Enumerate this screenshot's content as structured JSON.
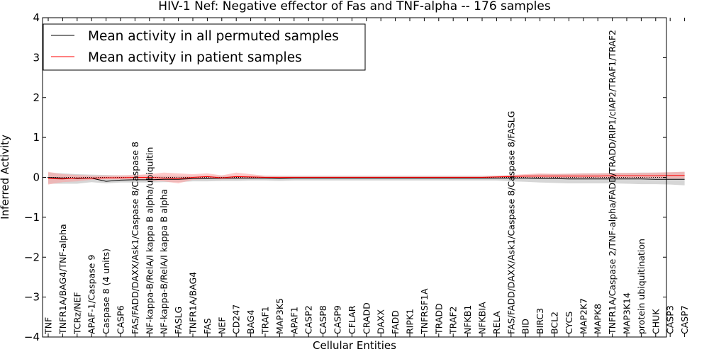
{
  "chart_data": {
    "type": "line",
    "title": "HIV-1 Nef: Negative effector of Fas and TNF-alpha -- 176 samples",
    "xlabel": "Cellular Entities",
    "ylabel": "Inferred Activity",
    "ylim": [
      -4,
      4
    ],
    "yticks": [
      -4,
      -3,
      -2,
      -1,
      0,
      1,
      2,
      3,
      4
    ],
    "ytick_labels": [
      "−4",
      "−3",
      "−2",
      "−1",
      "0",
      "1",
      "2",
      "3",
      "4"
    ],
    "grid": false,
    "legend_position": "top-left",
    "categories": [
      "TNF",
      "TNFR1A/BAG4/TNF-alpha",
      "TCRz/NEF",
      "APAF-1/Caspase 9",
      "Caspase 8 (4 units)",
      "CASP6",
      "FAS/FADD/DAXX/Ask1/Caspase 8/Caspase 8",
      "NF-kappa-B/RelA/I kappa B alpha/ubiquitin",
      "NF-kappa-B/RelA/I kappa B alpha",
      "FASLG",
      "TNFR1A/BAG4",
      "FAS",
      "NEF",
      "CD247",
      "BAG4",
      "TRAF1",
      "MAP3K5",
      "APAF1",
      "CASP2",
      "CASP8",
      "CASP9",
      "CFLAR",
      "CRADD",
      "DAXX",
      "FADD",
      "RIPK1",
      "TNFRSF1A",
      "TRADD",
      "TRAF2",
      "NFKB1",
      "NFKBIA",
      "RELA",
      "FAS/FADD/DAXX/Ask1/Caspase 8/Caspase 8/FASLG",
      "BID",
      "BIRC3",
      "BCL2",
      "CYCS",
      "MAP2K7",
      "MAPK8",
      "TNFR1A/Caspase 2/TNF-alpha/FADD/TRADD/RIP1/cIAP2/TRAF1/TRAF2",
      "MAP3K14",
      "protein ubiquitination",
      "CHUK",
      "CASP3",
      "CASP7"
    ],
    "series": [
      {
        "name": "Mean activity in all permuted samples",
        "color": "#000000",
        "values": [
          0.0,
          -0.02,
          -0.03,
          -0.02,
          -0.1,
          -0.07,
          -0.06,
          -0.06,
          -0.05,
          -0.05,
          -0.03,
          -0.03,
          -0.02,
          -0.02,
          -0.02,
          -0.02,
          -0.03,
          -0.02,
          -0.02,
          -0.02,
          -0.02,
          -0.02,
          -0.02,
          -0.02,
          -0.02,
          -0.02,
          -0.02,
          -0.02,
          -0.02,
          -0.02,
          -0.02,
          -0.02,
          -0.02,
          -0.02,
          -0.03,
          -0.03,
          -0.04,
          -0.04,
          -0.04,
          -0.04,
          -0.04,
          -0.04,
          -0.05,
          -0.05,
          -0.05
        ],
        "band_lower": [
          -0.16,
          -0.16,
          -0.16,
          -0.12,
          -0.15,
          -0.13,
          -0.13,
          -0.13,
          -0.12,
          -0.12,
          -0.1,
          -0.1,
          -0.09,
          -0.09,
          -0.08,
          -0.08,
          -0.09,
          -0.08,
          -0.08,
          -0.08,
          -0.08,
          -0.08,
          -0.08,
          -0.08,
          -0.08,
          -0.08,
          -0.08,
          -0.08,
          -0.08,
          -0.08,
          -0.08,
          -0.08,
          -0.1,
          -0.11,
          -0.13,
          -0.14,
          -0.15,
          -0.15,
          -0.15,
          -0.15,
          -0.16,
          -0.17,
          -0.17,
          -0.18,
          -0.2
        ],
        "band_upper": [
          0.12,
          0.1,
          0.08,
          0.07,
          0.06,
          0.05,
          0.05,
          0.05,
          0.04,
          0.04,
          0.04,
          0.04,
          0.04,
          0.04,
          0.04,
          0.04,
          0.04,
          0.04,
          0.04,
          0.04,
          0.04,
          0.04,
          0.04,
          0.04,
          0.04,
          0.04,
          0.04,
          0.04,
          0.04,
          0.04,
          0.04,
          0.04,
          0.05,
          0.06,
          0.08,
          0.08,
          0.09,
          0.1,
          0.1,
          0.11,
          0.11,
          0.12,
          0.12,
          0.13,
          0.14
        ]
      },
      {
        "name": "Mean activity in patient samples",
        "color": "#ff0000",
        "values": [
          -0.03,
          -0.04,
          -0.02,
          -0.02,
          -0.01,
          -0.01,
          0.0,
          0.0,
          -0.02,
          -0.03,
          0.0,
          0.02,
          -0.01,
          0.02,
          0.01,
          0.0,
          0.0,
          0.0,
          0.0,
          0.0,
          0.0,
          0.0,
          0.0,
          0.0,
          0.0,
          0.0,
          0.0,
          0.0,
          0.0,
          0.0,
          0.0,
          0.01,
          0.02,
          0.03,
          0.03,
          0.03,
          0.03,
          0.03,
          0.03,
          0.04,
          0.04,
          0.04,
          0.04,
          0.05,
          0.05
        ],
        "band_lower": [
          -0.18,
          -0.12,
          -0.1,
          -0.06,
          -0.05,
          -0.05,
          -0.05,
          -0.08,
          -0.1,
          -0.15,
          -0.06,
          -0.04,
          -0.05,
          -0.04,
          -0.03,
          -0.02,
          -0.02,
          -0.02,
          -0.02,
          -0.02,
          -0.02,
          -0.02,
          -0.02,
          -0.02,
          -0.02,
          -0.02,
          -0.02,
          -0.02,
          -0.02,
          -0.02,
          -0.02,
          -0.02,
          -0.01,
          -0.01,
          -0.01,
          -0.02,
          -0.02,
          -0.02,
          -0.02,
          -0.02,
          -0.02,
          -0.02,
          -0.02,
          -0.03,
          -0.03
        ],
        "band_upper": [
          0.14,
          0.08,
          0.06,
          0.04,
          0.04,
          0.05,
          0.06,
          0.08,
          0.12,
          0.1,
          0.08,
          0.1,
          0.05,
          0.12,
          0.08,
          0.04,
          0.03,
          0.03,
          0.03,
          0.03,
          0.03,
          0.03,
          0.03,
          0.03,
          0.03,
          0.03,
          0.03,
          0.03,
          0.03,
          0.03,
          0.03,
          0.04,
          0.06,
          0.08,
          0.1,
          0.09,
          0.09,
          0.1,
          0.1,
          0.11,
          0.11,
          0.11,
          0.12,
          0.13,
          0.14
        ]
      }
    ],
    "colors": {
      "permuted_band": "#c8c8c8",
      "patient_band": "#ff9e9e"
    }
  }
}
